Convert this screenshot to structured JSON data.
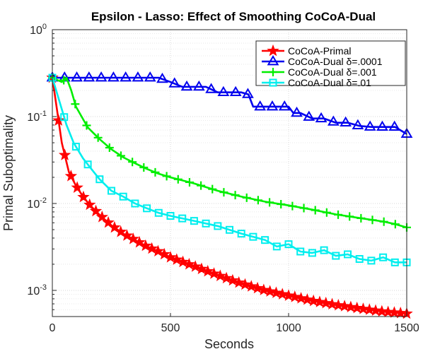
{
  "chart_data": {
    "type": "line",
    "title": "Epsilon - Lasso: Effect of Smoothing CoCoA-Dual",
    "xlabel": "Seconds",
    "ylabel": "Primal Suboptimality",
    "xlim": [
      0,
      1500
    ],
    "ylim": [
      0.0005,
      1
    ],
    "yscale": "log",
    "xticks": [
      0,
      500,
      1000,
      1500
    ],
    "xtick_labels": [
      "0",
      "500",
      "1000",
      "1500"
    ],
    "yticks": [
      0.001,
      0.01,
      0.1,
      1
    ],
    "ytick_labels": [
      {
        "base": "10",
        "exp": "-3"
      },
      {
        "base": "10",
        "exp": "-2"
      },
      {
        "base": "10",
        "exp": "-1"
      },
      {
        "base": "10",
        "exp": "0"
      }
    ],
    "grid": true,
    "legend_position": "top-right",
    "series": [
      {
        "name": "CoCoA-Primal",
        "color": "#ff0000",
        "marker": "star",
        "x": [
          0,
          40,
          70,
          100,
          130,
          160,
          200,
          250,
          300,
          350,
          400,
          450,
          500,
          600,
          700,
          800,
          900,
          1000,
          1100,
          1200,
          1300,
          1400,
          1500
        ],
        "y": [
          0.28,
          0.05,
          0.023,
          0.016,
          0.012,
          0.0095,
          0.0074,
          0.0056,
          0.0045,
          0.0038,
          0.0032,
          0.0028,
          0.0024,
          0.0019,
          0.0015,
          0.0012,
          0.001,
          0.00087,
          0.00076,
          0.00068,
          0.00062,
          0.00057,
          0.00054
        ]
      },
      {
        "name": "CoCoA-Dual δ=.0001",
        "color": "#0000ee",
        "marker": "triangle",
        "x": [
          0,
          100,
          200,
          300,
          400,
          450,
          500,
          550,
          600,
          650,
          700,
          750,
          800,
          830,
          850,
          900,
          950,
          1000,
          1020,
          1050,
          1100,
          1150,
          1200,
          1250,
          1300,
          1350,
          1400,
          1450,
          1500
        ],
        "y": [
          0.28,
          0.28,
          0.28,
          0.28,
          0.28,
          0.28,
          0.25,
          0.22,
          0.22,
          0.22,
          0.19,
          0.19,
          0.19,
          0.18,
          0.13,
          0.13,
          0.13,
          0.13,
          0.11,
          0.11,
          0.095,
          0.095,
          0.085,
          0.085,
          0.078,
          0.076,
          0.076,
          0.076,
          0.063
        ]
      },
      {
        "name": "CoCoA-Dual δ=.001",
        "color": "#00ee00",
        "marker": "plus",
        "x": [
          0,
          40,
          60,
          80,
          100,
          150,
          200,
          250,
          300,
          350,
          400,
          450,
          500,
          600,
          700,
          800,
          900,
          1000,
          1100,
          1200,
          1300,
          1400,
          1450,
          1500
        ],
        "y": [
          0.28,
          0.25,
          0.28,
          0.2,
          0.13,
          0.075,
          0.055,
          0.042,
          0.034,
          0.029,
          0.025,
          0.022,
          0.02,
          0.017,
          0.014,
          0.012,
          0.0105,
          0.0095,
          0.0085,
          0.0075,
          0.0068,
          0.0062,
          0.0058,
          0.0053
        ]
      },
      {
        "name": "CoCoA-Dual δ=.01",
        "color": "#00eeee",
        "marker": "square",
        "x": [
          0,
          30,
          60,
          90,
          130,
          170,
          200,
          250,
          300,
          350,
          400,
          450,
          500,
          600,
          700,
          800,
          900,
          950,
          1000,
          1050,
          1100,
          1150,
          1200,
          1250,
          1300,
          1350,
          1400,
          1450,
          1500
        ],
        "y": [
          0.28,
          0.15,
          0.08,
          0.05,
          0.033,
          0.024,
          0.019,
          0.014,
          0.012,
          0.01,
          0.0088,
          0.0078,
          0.0072,
          0.0063,
          0.0055,
          0.0045,
          0.0038,
          0.0032,
          0.0034,
          0.0028,
          0.0027,
          0.0029,
          0.0025,
          0.0026,
          0.0023,
          0.0022,
          0.0024,
          0.0021,
          0.0021
        ]
      }
    ]
  }
}
